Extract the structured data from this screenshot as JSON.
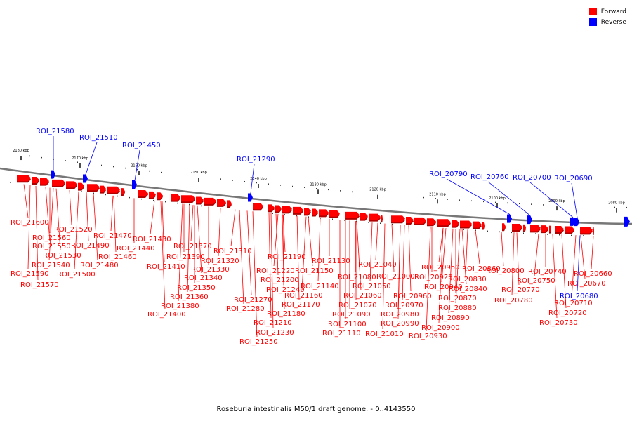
{
  "legend": [
    {
      "label": "Forward",
      "color": "#ff0000"
    },
    {
      "label": "Reverse",
      "color": "#0000ff"
    }
  ],
  "caption": "Roseburia intestinalis M50/1 draft genome. - 0..4143550",
  "colors": {
    "forward": "#ff0000",
    "forward_dark": "#b00000",
    "reverse": "#0000ff",
    "backbone": "#777777"
  },
  "scale": {
    "unit": "kbp",
    "ticks": [
      "2180 kbp",
      "2170 kbp",
      "2160 kbp",
      "2150 kbp",
      "2140 kbp",
      "2130 kbp",
      "2120 kbp",
      "2110 kbp",
      "2100 kbp",
      "2090 kbp",
      "2080 kbp"
    ]
  },
  "features": {
    "reverse": [
      "ROI_21580",
      "ROI_21510",
      "ROI_21450",
      "ROI_21290",
      "ROI_20790",
      "ROI_20760",
      "ROI_20700",
      "ROI_20690",
      "ROI_20680"
    ],
    "forward": [
      "ROI_21600",
      "ROI_21520",
      "ROI_21560",
      "ROI_21470",
      "ROI_21430",
      "ROI_21550",
      "ROI_21490",
      "ROI_21440",
      "ROI_21370",
      "ROI_21310",
      "ROI_21530",
      "ROI_21460",
      "ROI_21390",
      "ROI_21320",
      "ROI_21540",
      "ROI_21480",
      "ROI_21410",
      "ROI_21330",
      "ROI_21590",
      "ROI_21500",
      "ROI_21340",
      "ROI_21570",
      "ROI_21350",
      "ROI_21360",
      "ROI_21380",
      "ROI_21400",
      "ROI_21190",
      "ROI_21130",
      "ROI_21040",
      "ROI_20950",
      "ROI_20860",
      "ROI_20800",
      "ROI_20740",
      "ROI_20660",
      "ROI_21220",
      "ROI_21150",
      "ROI_21000",
      "ROI_20920",
      "ROI_20830",
      "ROI_20750",
      "ROI_20670",
      "ROI_21200",
      "ROI_21080",
      "ROI_21050",
      "ROI_20940",
      "ROI_20840",
      "ROI_20770",
      "ROI_21240",
      "ROI_21140",
      "ROI_21160",
      "ROI_21060",
      "ROI_20960",
      "ROI_20870",
      "ROI_20780",
      "ROI_20710",
      "ROI_21270",
      "ROI_21170",
      "ROI_21070",
      "ROI_20970",
      "ROI_20880",
      "ROI_21280",
      "ROI_21180",
      "ROI_21090",
      "ROI_20980",
      "ROI_20890",
      "ROI_20720",
      "ROI_21210",
      "ROI_21100",
      "ROI_20990",
      "ROI_20900",
      "ROI_20730",
      "ROI_21230",
      "ROI_21110",
      "ROI_21010",
      "ROI_20930",
      "ROI_21250"
    ]
  }
}
